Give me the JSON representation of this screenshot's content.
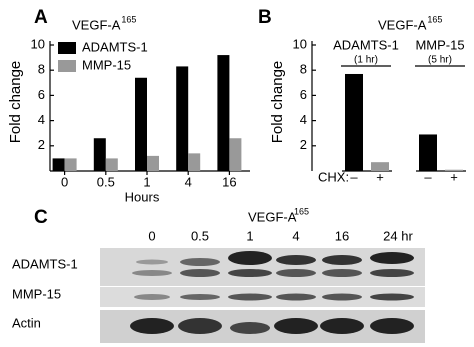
{
  "chart_data": [
    {
      "type": "bar",
      "panel": "A",
      "title": "VEGF-A",
      "title_sup": "165",
      "ylabel": "Fold change",
      "xlabel": "Hours",
      "categories": [
        "0",
        "0.5",
        "1",
        "4",
        "16"
      ],
      "series": [
        {
          "name": "ADAMTS-1",
          "color": "#000000",
          "values": [
            1.0,
            2.6,
            7.4,
            8.3,
            9.2
          ]
        },
        {
          "name": "MMP-15",
          "color": "#999999",
          "values": [
            1.0,
            1.0,
            1.2,
            1.4,
            2.6
          ]
        }
      ],
      "ylim": [
        0,
        10
      ],
      "yticks": [
        2,
        4,
        6,
        8,
        10
      ],
      "legend": "top-left"
    },
    {
      "type": "grouped",
      "panel": "B",
      "title": "VEGF-A",
      "title_sup": "165",
      "ylabel": "Fold change",
      "xlabel": "CHX:",
      "categories": [
        "–",
        "+"
      ],
      "colors": [
        "#000000",
        "#999999"
      ],
      "groups": [
        {
          "name": "ADAMTS-1",
          "note": "(1 hr)",
          "values": [
            7.7,
            0.7
          ]
        },
        {
          "name": "MMP-15",
          "note": "(5 hr)",
          "values": [
            2.9,
            0.1
          ]
        }
      ],
      "ylim": [
        0,
        10
      ],
      "yticks": [
        2,
        4,
        6,
        8,
        10
      ]
    }
  ],
  "blot": {
    "panel": "C",
    "title": "VEGF-A",
    "title_sup": "165",
    "lanes": [
      "0",
      "0.5",
      "1",
      "4",
      "16",
      "24 hr"
    ],
    "rows": [
      "ADAMTS-1",
      "MMP-15",
      "Actin"
    ]
  }
}
